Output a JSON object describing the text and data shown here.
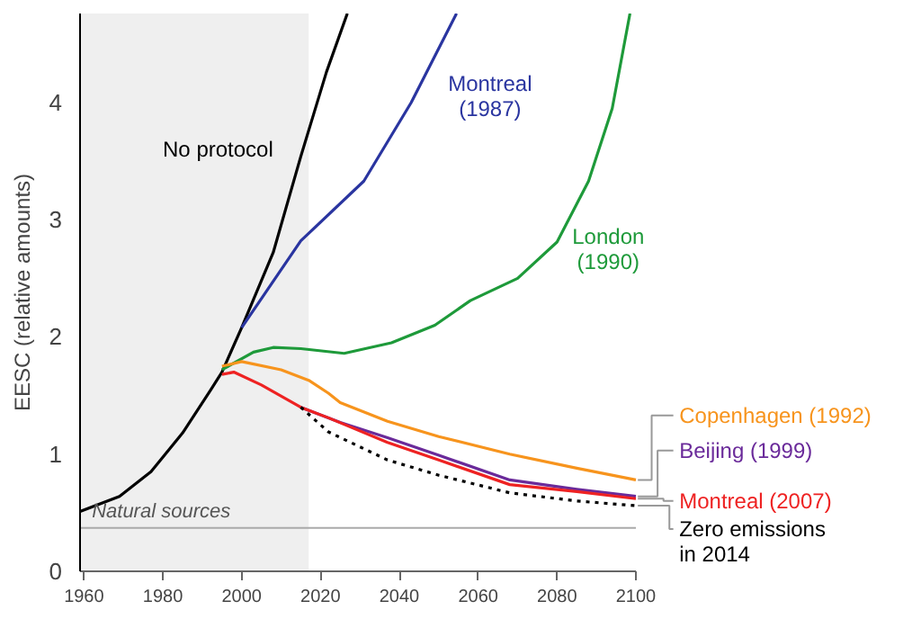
{
  "chart_data": {
    "type": "line",
    "ylabel": "EESC (relative amounts)",
    "xlim": [
      1959,
      2100
    ],
    "ylim": [
      0,
      4.76
    ],
    "xticks": [
      1960,
      1980,
      2000,
      2020,
      2040,
      2060,
      2080,
      2100
    ],
    "yticks": [
      0,
      1,
      2,
      3,
      4
    ],
    "grid": false,
    "legend": false,
    "line_style": "solid",
    "bands": [
      {
        "axis": "x",
        "from": 1959,
        "to": 2017,
        "color": "#efefef"
      }
    ],
    "ref_lines": [
      {
        "axis": "y",
        "value": 0.37,
        "label": "Natural sources",
        "color": "#aaaaaa"
      }
    ],
    "series": [
      {
        "name": "No protocol",
        "color": "#000000",
        "x": [
          1959,
          1969,
          1977,
          1985,
          1992,
          1995,
          2000,
          2008,
          2015,
          2021.5,
          2026.8
        ],
        "values": [
          0.51,
          0.64,
          0.85,
          1.18,
          1.54,
          1.7,
          2.08,
          2.72,
          3.54,
          4.26,
          4.76
        ]
      },
      {
        "name": "Montreal (1987)",
        "color": "#2a35a0",
        "x": [
          2000,
          2015,
          2031,
          2043,
          2054.5
        ],
        "values": [
          2.08,
          2.82,
          3.33,
          4.0,
          4.76
        ]
      },
      {
        "name": "London (1990)",
        "color": "#1e9a3a",
        "x": [
          1995,
          2003,
          2008,
          2015,
          2026,
          2038,
          2049,
          2058,
          2070,
          2080,
          2088,
          2094,
          2098.5
        ],
        "values": [
          1.72,
          1.87,
          1.91,
          1.9,
          1.86,
          1.95,
          2.1,
          2.31,
          2.5,
          2.81,
          3.33,
          3.95,
          4.76
        ]
      },
      {
        "name": "Copenhagen (1992)",
        "color": "#f7941d",
        "x": [
          1995,
          2000,
          2010,
          2017,
          2022,
          2025,
          2037,
          2050,
          2068,
          2085,
          2100
        ],
        "values": [
          1.75,
          1.79,
          1.72,
          1.63,
          1.52,
          1.44,
          1.28,
          1.15,
          1.0,
          0.88,
          0.78
        ]
      },
      {
        "name": "Beijing (1999)",
        "color": "#6a2a9a",
        "x": [
          2015,
          2025,
          2037,
          2050,
          2068,
          2085,
          2100
        ],
        "values": [
          1.4,
          1.27,
          1.14,
          0.99,
          0.78,
          0.7,
          0.64
        ]
      },
      {
        "name": "Montreal (2007)",
        "color": "#ee2222",
        "x": [
          1995,
          1998,
          2005,
          2015,
          2022,
          2037,
          2050,
          2068,
          2085,
          2100
        ],
        "values": [
          1.68,
          1.7,
          1.59,
          1.4,
          1.31,
          1.1,
          0.95,
          0.74,
          0.68,
          0.62
        ]
      },
      {
        "name": "Zero emissions in 2014",
        "color": "#000000",
        "line_style": "dotted",
        "x": [
          2015,
          2022,
          2037,
          2050,
          2068,
          2085,
          2100
        ],
        "values": [
          1.4,
          1.19,
          0.95,
          0.82,
          0.67,
          0.6,
          0.56
        ]
      }
    ]
  }
}
